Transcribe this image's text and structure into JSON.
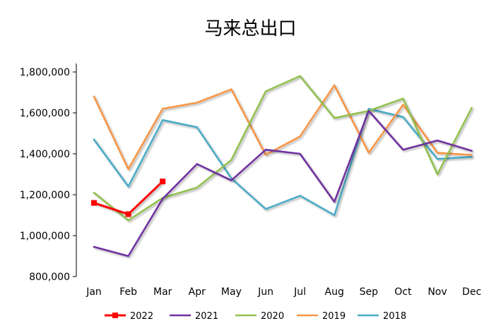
{
  "chart_data": {
    "type": "line",
    "title": "马来总出口",
    "xlabel": "",
    "ylabel": "",
    "categories": [
      "Jan",
      "Feb",
      "Mar",
      "Apr",
      "May",
      "Jun",
      "Jul",
      "Aug",
      "Sep",
      "Oct",
      "Nov",
      "Dec"
    ],
    "y_ticks": [
      "800,000",
      "1,000,000",
      "1,200,000",
      "1,400,000",
      "1,600,000",
      "1,800,000"
    ],
    "ylim": [
      800000,
      1800000
    ],
    "grid": false,
    "legend_position": "bottom",
    "series": [
      {
        "name": "2022",
        "color": "#ff0000",
        "marker": "square",
        "values": [
          1160000,
          1105000,
          1265000,
          null,
          null,
          null,
          null,
          null,
          null,
          null,
          null,
          null
        ]
      },
      {
        "name": "2021",
        "color": "#7030a0",
        "values": [
          945000,
          900000,
          1180000,
          1350000,
          1270000,
          1420000,
          1400000,
          1165000,
          1610000,
          1420000,
          1465000,
          1415000
        ]
      },
      {
        "name": "2020",
        "color": "#92c050",
        "values": [
          1210000,
          1075000,
          1185000,
          1235000,
          1370000,
          1705000,
          1780000,
          1575000,
          1610000,
          1670000,
          1300000,
          1625000
        ]
      },
      {
        "name": "2019",
        "color": "#f79646",
        "values": [
          1680000,
          1325000,
          1620000,
          1650000,
          1715000,
          1395000,
          1485000,
          1735000,
          1405000,
          1640000,
          1405000,
          1395000
        ]
      },
      {
        "name": "2018",
        "color": "#4bacc6",
        "values": [
          1470000,
          1240000,
          1565000,
          1530000,
          1280000,
          1130000,
          1195000,
          1100000,
          1620000,
          1580000,
          1375000,
          1385000
        ]
      }
    ]
  }
}
